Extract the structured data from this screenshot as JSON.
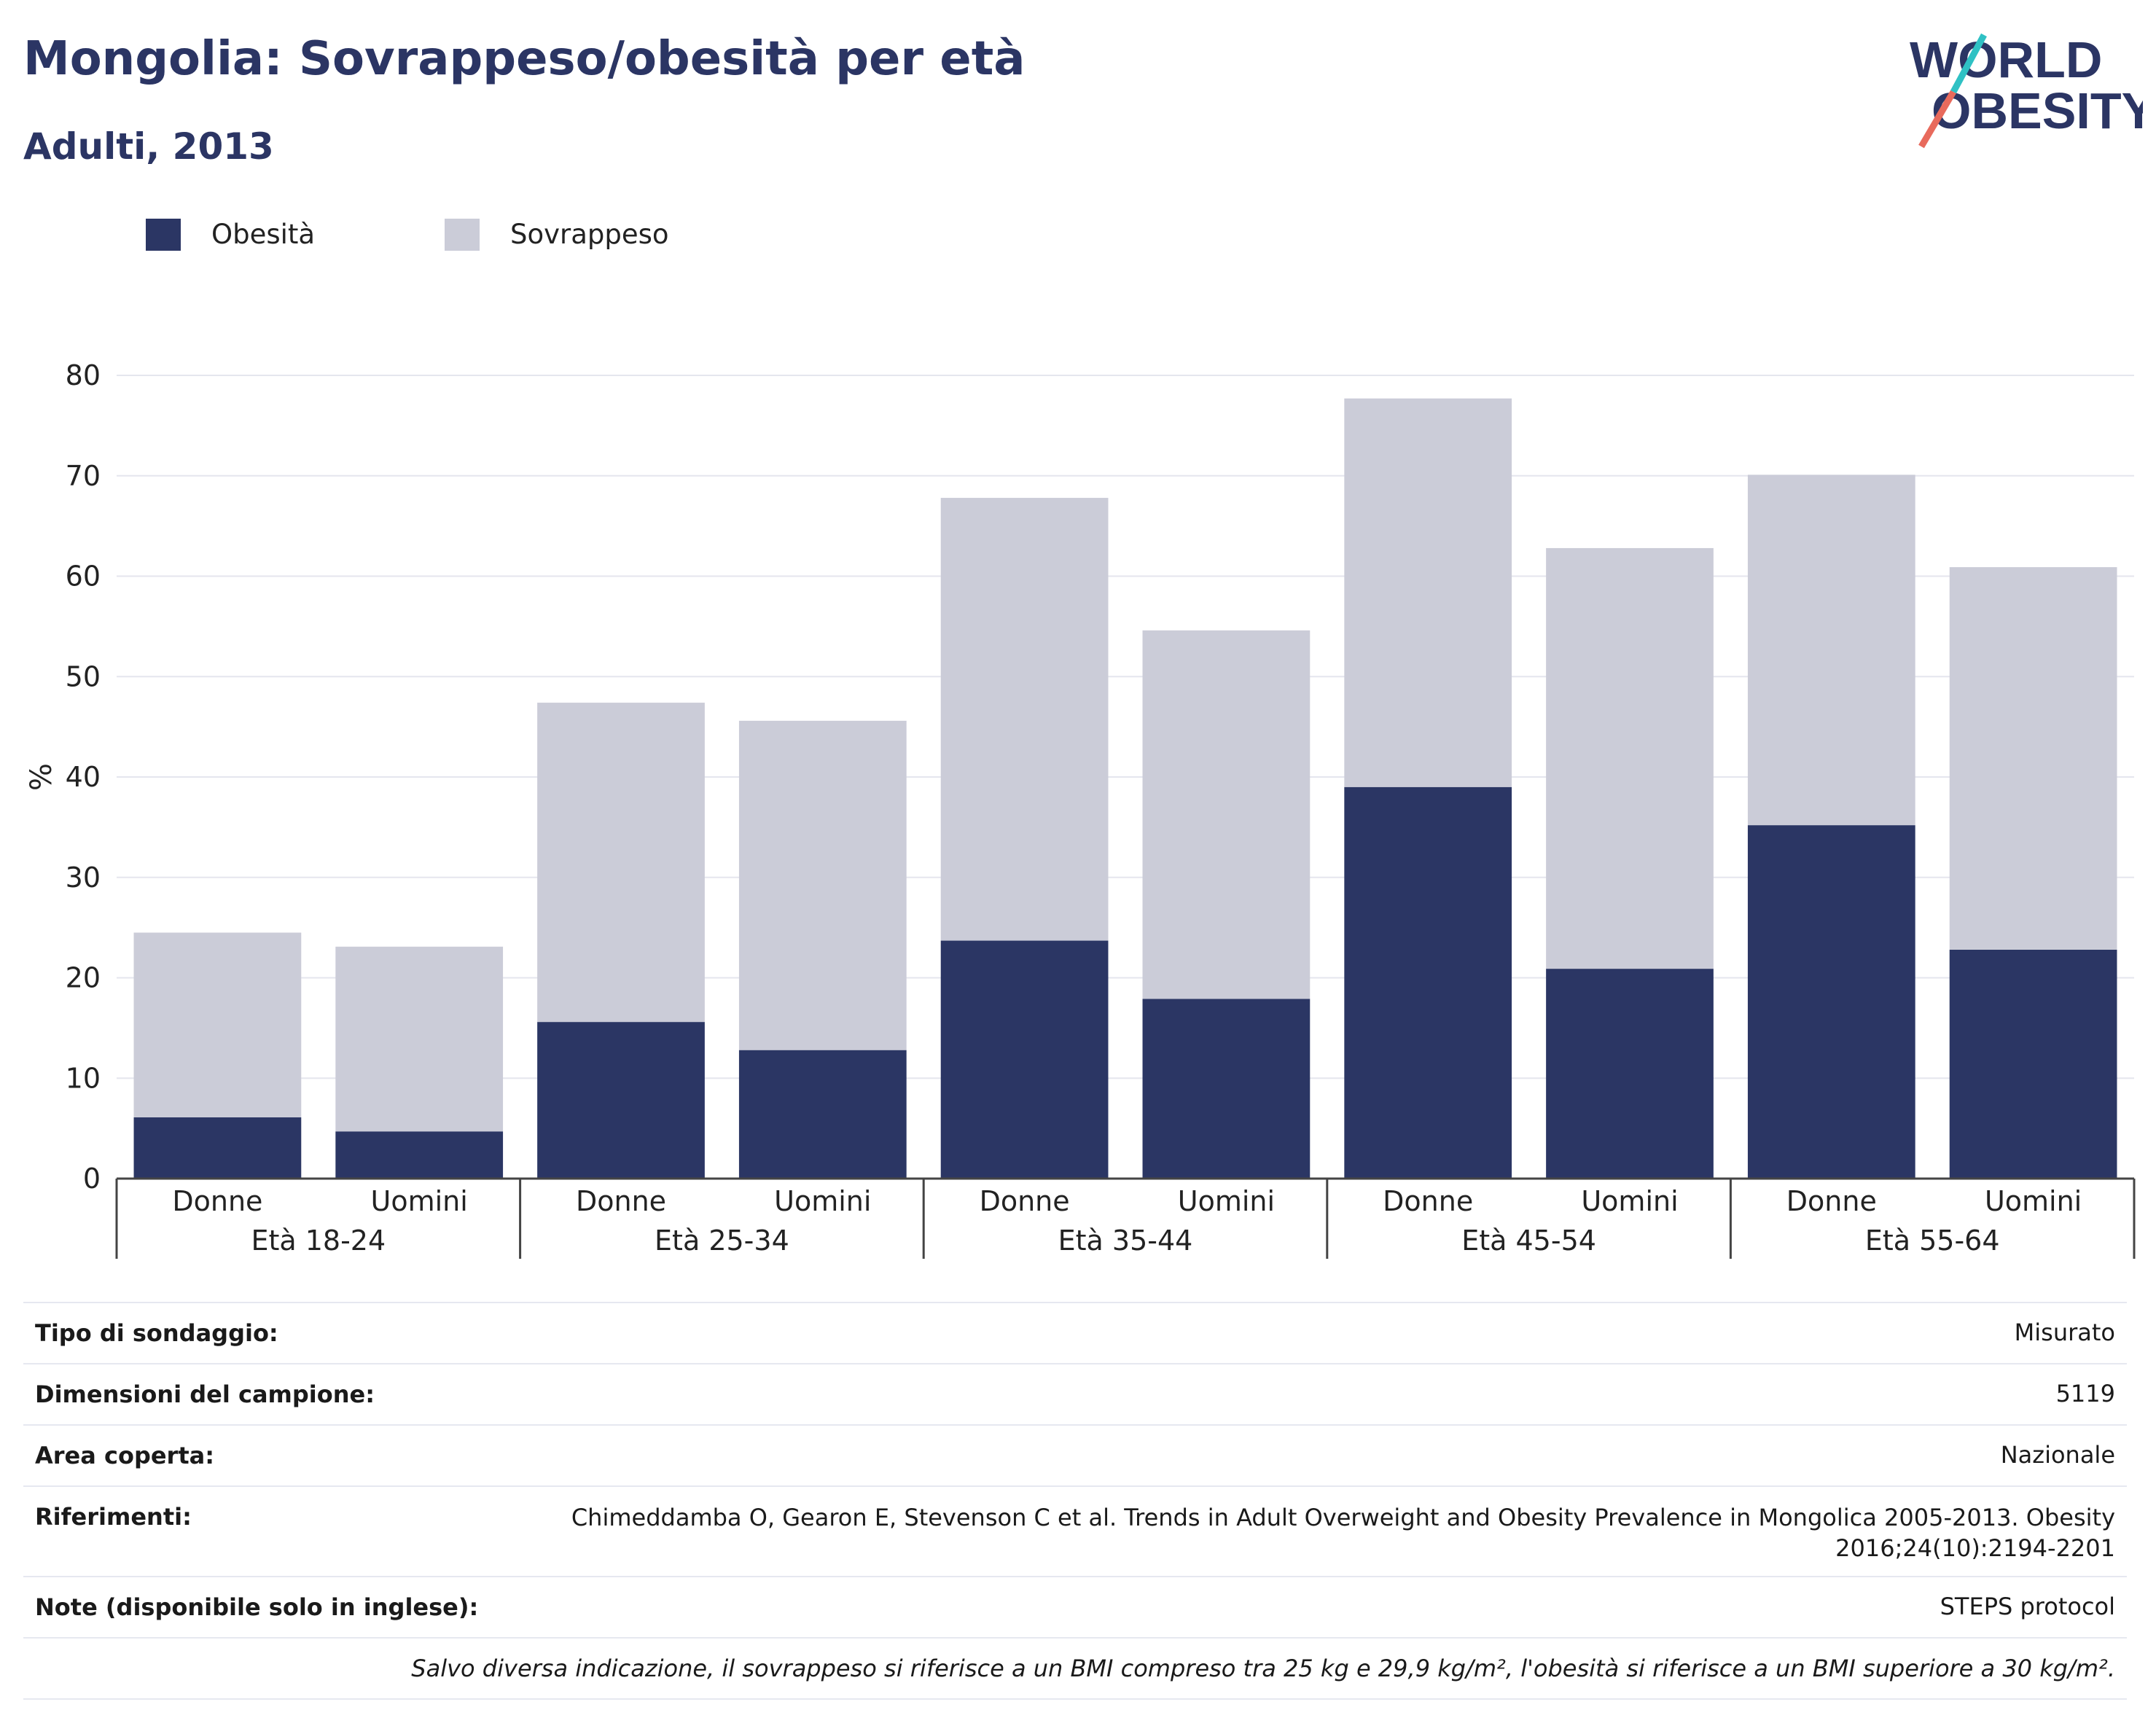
{
  "header": {
    "title": "Mongolia: Sovrappeso/obesità per età",
    "subtitle": "Adulti, 2013"
  },
  "logo": {
    "line1": "WORLD",
    "line2": "OBESITY"
  },
  "colors": {
    "obesity": "#2b3664",
    "overweight": "#cbccd8",
    "title": "#2b3564",
    "grid": "#e5e6ee"
  },
  "chart_data": {
    "type": "bar",
    "stacked": true,
    "ylabel": "%",
    "ylim": [
      0,
      80
    ],
    "yticks": [
      0,
      10,
      20,
      30,
      40,
      50,
      60,
      70,
      80
    ],
    "grid": true,
    "legend_position": "top-left",
    "categories": [
      "Donne",
      "Uomini",
      "Donne",
      "Uomini",
      "Donne",
      "Uomini",
      "Donne",
      "Uomini",
      "Donne",
      "Uomini"
    ],
    "groups": [
      "Età 18-24",
      "Età 25-34",
      "Età 35-44",
      "Età 45-54",
      "Età 55-64"
    ],
    "series": [
      {
        "name": "Obesità",
        "values": [
          6.1,
          4.7,
          15.6,
          12.8,
          23.7,
          17.9,
          39.0,
          20.9,
          35.2,
          22.8
        ]
      },
      {
        "name": "Sovrappeso",
        "values": [
          18.4,
          18.4,
          31.8,
          32.8,
          44.1,
          36.7,
          38.7,
          41.9,
          34.9,
          38.1
        ]
      }
    ]
  },
  "info": {
    "rows": [
      {
        "key": "Tipo di sondaggio:",
        "value": "Misurato"
      },
      {
        "key": "Dimensioni del campione:",
        "value": "5119"
      },
      {
        "key": "Area coperta:",
        "value": "Nazionale"
      },
      {
        "key": "Riferimenti:",
        "value": "Chimeddamba O, Gearon E, Stevenson C et al. Trends in Adult Overweight and Obesity Prevalence in Mongolica 2005-2013. Obesity 2016;24(10):2194-2201"
      },
      {
        "key": "Note (disponibile solo in inglese):",
        "value": "STEPS protocol"
      }
    ],
    "note": "Salvo diversa indicazione, il sovrappeso si riferisce a un BMI compreso tra 25 kg e 29,9 kg/m², l'obesità si riferisce a un BMI superiore a 30 kg/m²."
  }
}
